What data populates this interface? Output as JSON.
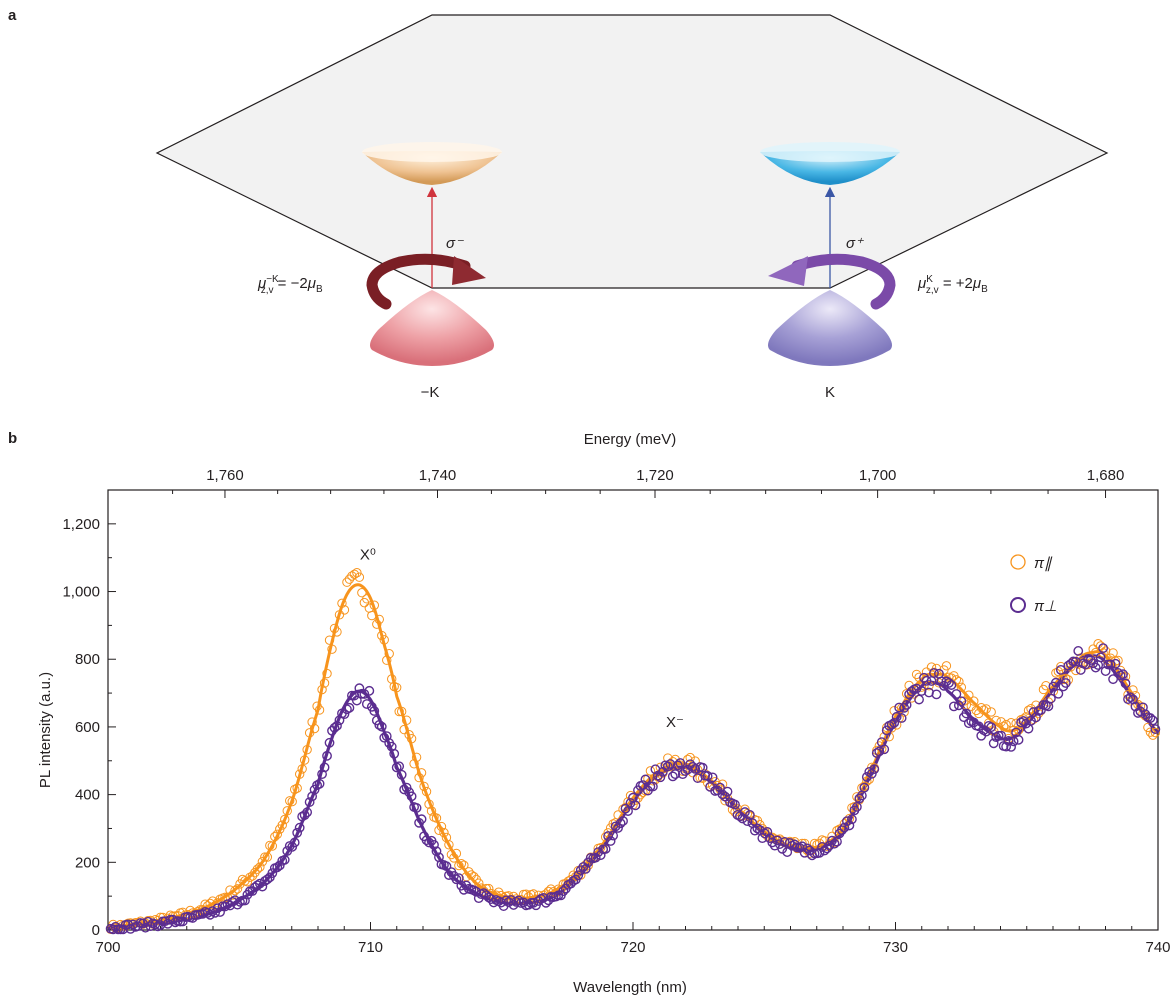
{
  "panel_a": {
    "label": "a",
    "left_sigma": "σ⁻",
    "right_sigma": "σ⁺",
    "left_moment": {
      "mu": "μ",
      "sup": "−K",
      "sub": "z,v",
      "equals": " = −2",
      "mu_b": "μ",
      "sub_b": "B"
    },
    "right_moment": {
      "mu": "μ",
      "sup": "K",
      "sub": "z,v",
      "equals": " = +2",
      "mu_b": "μ",
      "sub_b": "B"
    },
    "left_valley": "−K",
    "right_valley": "K",
    "colors": {
      "left_band_top": "#e8b67a",
      "right_band_top": "#2aa3dc",
      "left_band_bottom": "#e07d85",
      "right_band_bottom": "#8d86c7",
      "left_arrow": "#d0343d",
      "right_arrow": "#3b57a6",
      "left_loop": "#7a1f25",
      "right_loop": "#7b4aa8"
    }
  },
  "panel_b": {
    "label": "b",
    "chart_data": {
      "type": "scatter",
      "xlabel": "Wavelength (nm)",
      "ylabel": "PL intensity (a.u.)",
      "x2label": "Energy (meV)",
      "xlim": [
        700,
        740
      ],
      "ylim": [
        0,
        1300
      ],
      "x_ticks": [
        "700",
        "710",
        "720",
        "730",
        "740"
      ],
      "y_ticks": [
        "0",
        "200",
        "400",
        "600",
        "800",
        "1,000",
        "1,200"
      ],
      "energy_ticks": [
        "1,760",
        "1,740",
        "1,720",
        "1,700",
        "1,680"
      ],
      "energy_tick_values": [
        1760,
        1740,
        1720,
        1700,
        1680
      ],
      "annotations": [
        {
          "text": "X⁰",
          "x": 709.9,
          "y": 1095
        },
        {
          "text": "X⁻",
          "x": 721.6,
          "y": 600
        }
      ],
      "legend_position": "top-right",
      "series": [
        {
          "name": "π∥",
          "color": "#f7941d",
          "x": [
            700,
            701,
            702,
            703,
            704,
            705,
            706,
            707,
            708,
            708.5,
            709,
            709.5,
            710,
            710.5,
            711,
            712,
            713,
            714,
            715,
            716,
            717,
            718,
            719,
            720,
            721,
            722,
            723,
            724,
            725,
            726,
            727,
            728,
            729,
            730,
            731,
            731.5,
            732,
            733,
            734,
            734.5,
            735,
            736,
            737,
            737.5,
            738,
            739,
            740
          ],
          "values": [
            8,
            18,
            30,
            48,
            78,
            130,
            215,
            380,
            650,
            840,
            975,
            1020,
            980,
            850,
            690,
            430,
            250,
            140,
            100,
            95,
            115,
            175,
            270,
            390,
            470,
            490,
            440,
            360,
            290,
            248,
            245,
            300,
            460,
            630,
            740,
            755,
            745,
            670,
            600,
            590,
            620,
            720,
            800,
            820,
            810,
            700,
            585
          ]
        },
        {
          "name": "π⊥",
          "color": "#5b2d90",
          "x": [
            700,
            701,
            702,
            703,
            704,
            705,
            706,
            707,
            708,
            708.5,
            709,
            709.5,
            710,
            710.5,
            711,
            712,
            713,
            714,
            715,
            716,
            717,
            718,
            719,
            720,
            721,
            722,
            723,
            724,
            725,
            726,
            727,
            728,
            729,
            730,
            731,
            731.5,
            732,
            733,
            734,
            734.5,
            735,
            736,
            737,
            737.5,
            738,
            739,
            740
          ],
          "values": [
            6,
            12,
            20,
            32,
            52,
            88,
            145,
            250,
            430,
            560,
            660,
            705,
            680,
            590,
            480,
            300,
            170,
            110,
            82,
            80,
            100,
            165,
            260,
            380,
            460,
            480,
            435,
            355,
            285,
            243,
            240,
            290,
            450,
            615,
            720,
            730,
            705,
            620,
            568,
            570,
            610,
            710,
            795,
            810,
            790,
            690,
            585
          ]
        }
      ]
    }
  }
}
